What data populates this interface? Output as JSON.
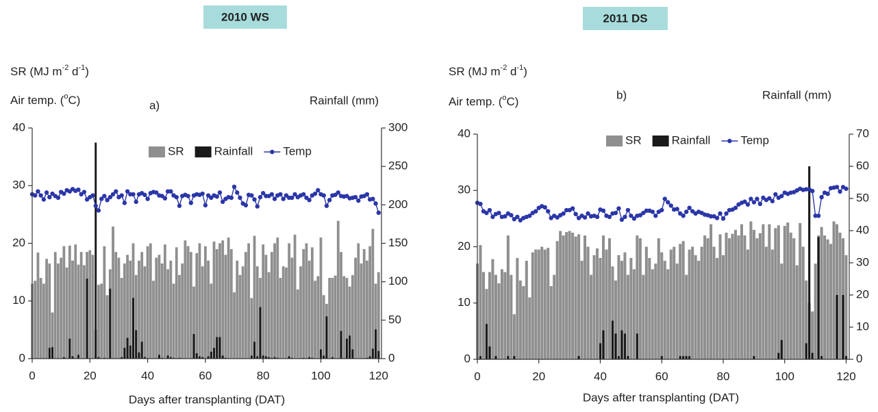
{
  "chart_data": [
    {
      "type": "combo",
      "title": "2010 WS",
      "panel_label": "a)",
      "ylabel": [
        "SR (MJ m",
        "-2",
        " d",
        "-1",
        ")"
      ],
      "ylabel2": [
        "Air temp. (",
        "o",
        "C)"
      ],
      "y2label": "Rainfall (mm)",
      "xlabel": "Days after transplanting (DAT)",
      "xlim": [
        0,
        121
      ],
      "xticks": [
        0,
        20,
        40,
        60,
        80,
        100,
        120
      ],
      "ylim": [
        0,
        40
      ],
      "yticks": [
        0,
        10,
        20,
        30,
        40
      ],
      "y2lim": [
        0,
        300
      ],
      "y2ticks": [
        0,
        50,
        100,
        150,
        200,
        250,
        300
      ],
      "x": [
        0,
        1,
        2,
        3,
        4,
        5,
        6,
        7,
        8,
        9,
        10,
        11,
        12,
        13,
        14,
        15,
        16,
        17,
        18,
        19,
        20,
        21,
        22,
        23,
        24,
        25,
        26,
        27,
        28,
        29,
        30,
        31,
        32,
        33,
        34,
        35,
        36,
        37,
        38,
        39,
        40,
        41,
        42,
        43,
        44,
        45,
        46,
        47,
        48,
        49,
        50,
        51,
        52,
        53,
        54,
        55,
        56,
        57,
        58,
        59,
        60,
        61,
        62,
        63,
        64,
        65,
        66,
        67,
        68,
        69,
        70,
        71,
        72,
        73,
        74,
        75,
        76,
        77,
        78,
        79,
        80,
        81,
        82,
        83,
        84,
        85,
        86,
        87,
        88,
        89,
        90,
        91,
        92,
        93,
        94,
        95,
        96,
        97,
        98,
        99,
        100,
        101,
        102,
        103,
        104,
        105,
        106,
        107,
        108,
        109,
        110,
        111,
        112,
        113,
        114,
        115,
        116,
        117,
        118,
        119,
        120
      ],
      "series": [
        {
          "name": "SR",
          "kind": "bar",
          "color": "#8f8f8f",
          "values": [
            13,
            13.5,
            18.4,
            14,
            13,
            17.3,
            16.5,
            8,
            18.5,
            16.5,
            17.5,
            19.5,
            15.8,
            19.6,
            17,
            19.8,
            16.3,
            18.5,
            16.2,
            18.5,
            18.8,
            18,
            5,
            12.8,
            13,
            19.5,
            11,
            15.5,
            22.9,
            18.5,
            17.5,
            14,
            16.5,
            18,
            17,
            20,
            14.5,
            17,
            18.5,
            16,
            19.5,
            20,
            13.5,
            17.5,
            18,
            16.5,
            19.8,
            15.5,
            17,
            13,
            19.3,
            14.5,
            16.5,
            20.5,
            19.5,
            18.5,
            12.5,
            18.3,
            20,
            16,
            19.5,
            17,
            13,
            20.3,
            19,
            20,
            20.5,
            18,
            21,
            19,
            11.5,
            17,
            14.5,
            16,
            18.5,
            20,
            10.5,
            21.3,
            16,
            14,
            19.8,
            18,
            15,
            18.5,
            20,
            21,
            14,
            16,
            15.8,
            20,
            17.5,
            21.5,
            12,
            16,
            19,
            20,
            17,
            19.3,
            13.5,
            14.3,
            21,
            11,
            9.5,
            14,
            14,
            14.4,
            23.9,
            18.5,
            14.3,
            14,
            12.5,
            14.5,
            17.5,
            20,
            16.5,
            19,
            17,
            19.5,
            22.5,
            13,
            15
          ]
        },
        {
          "name": "Rainfall",
          "kind": "bar",
          "axis": "y2",
          "color": "#1a1a1a",
          "values": [
            0,
            0,
            0,
            0,
            0,
            0,
            14,
            15,
            0,
            0,
            0,
            2,
            0,
            26,
            3,
            0,
            5,
            0,
            0,
            104,
            0,
            0,
            281,
            2,
            0,
            1,
            0,
            91,
            0,
            0,
            0,
            2,
            14,
            27,
            17,
            79,
            37,
            8,
            22,
            2,
            0,
            0,
            0,
            0,
            5,
            1,
            0,
            4,
            2,
            1,
            0,
            1,
            0,
            0,
            0,
            0,
            32,
            7,
            3,
            2,
            0,
            3,
            9,
            14,
            28,
            28,
            4,
            1,
            0,
            0,
            0,
            0,
            0,
            0,
            0,
            0,
            4,
            22,
            3,
            67,
            4,
            3,
            2,
            1,
            2,
            1,
            0,
            0,
            0,
            3,
            1,
            0,
            0,
            0,
            1,
            0,
            2,
            1,
            0,
            0,
            12,
            4,
            55,
            0,
            2,
            0,
            0,
            36,
            0,
            26,
            30,
            12,
            0,
            0,
            0,
            0,
            1,
            3,
            13,
            38,
            10
          ]
        },
        {
          "name": "Temp",
          "kind": "line",
          "color": "#2b36a8",
          "values": [
            28.5,
            28.3,
            29,
            28.3,
            27.6,
            28.8,
            28,
            28.6,
            28.2,
            27.9,
            28.9,
            28.6,
            29.2,
            29,
            29.4,
            29.1,
            29.3,
            28.5,
            28.9,
            27.6,
            28,
            28.3,
            26.5,
            25.7,
            27.7,
            28.2,
            27.5,
            28,
            28.5,
            29,
            28,
            28.3,
            27,
            29,
            28.5,
            28.5,
            27.2,
            28.5,
            28.7,
            28.4,
            27.7,
            28.7,
            28.9,
            28.8,
            28.3,
            28.2,
            27.8,
            29,
            29,
            28.3,
            28,
            26.5,
            28.2,
            28.4,
            28.2,
            27,
            28.3,
            28.5,
            28.4,
            28.6,
            26.6,
            28.3,
            27.9,
            28.3,
            28.1,
            28.8,
            27.2,
            27.7,
            28,
            27.9,
            29.8,
            28.8,
            27.9,
            26.9,
            26.6,
            28.4,
            28.3,
            27.6,
            26.4,
            28,
            28.7,
            28.2,
            28.2,
            28.5,
            27.7,
            28.3,
            28.5,
            27.7,
            28.3,
            27.9,
            27.9,
            28.5,
            28,
            28.3,
            28.5,
            27.9,
            27.5,
            28.3,
            28.6,
            29.2,
            28.5,
            28.3,
            26.5,
            27.5,
            28.3,
            28.4,
            28.8,
            28.2,
            28.1,
            28.2,
            27.8,
            27.9,
            28,
            27.4,
            28.1,
            28.2,
            28.5,
            27.6,
            27.7,
            26.9,
            25.3
          ]
        }
      ]
    },
    {
      "type": "combo",
      "title": "2011 DS",
      "panel_label": "b)",
      "ylabel": [
        "SR (MJ m",
        "-2",
        " d",
        "-1",
        ")"
      ],
      "ylabel2": [
        "Air temp. (",
        "o",
        "C)"
      ],
      "y2label": "Rainfall (mm)",
      "xlabel": "Days after transplanting (DAT)",
      "xlim": [
        0,
        121
      ],
      "xticks": [
        0,
        20,
        40,
        60,
        80,
        100,
        120
      ],
      "ylim": [
        0,
        40
      ],
      "yticks": [
        0,
        10,
        20,
        30,
        40
      ],
      "y2lim": [
        0,
        70
      ],
      "y2ticks": [
        0,
        10,
        20,
        30,
        40,
        50,
        60,
        70
      ],
      "x": [
        0,
        1,
        2,
        3,
        4,
        5,
        6,
        7,
        8,
        9,
        10,
        11,
        12,
        13,
        14,
        15,
        16,
        17,
        18,
        19,
        20,
        21,
        22,
        23,
        24,
        25,
        26,
        27,
        28,
        29,
        30,
        31,
        32,
        33,
        34,
        35,
        36,
        37,
        38,
        39,
        40,
        41,
        42,
        43,
        44,
        45,
        46,
        47,
        48,
        49,
        50,
        51,
        52,
        53,
        54,
        55,
        56,
        57,
        58,
        59,
        60,
        61,
        62,
        63,
        64,
        65,
        66,
        67,
        68,
        69,
        70,
        71,
        72,
        73,
        74,
        75,
        76,
        77,
        78,
        79,
        80,
        81,
        82,
        83,
        84,
        85,
        86,
        87,
        88,
        89,
        90,
        91,
        92,
        93,
        94,
        95,
        96,
        97,
        98,
        99,
        100,
        101,
        102,
        103,
        104,
        105,
        106,
        107,
        108,
        109,
        110,
        111,
        112,
        113,
        114,
        115,
        116,
        117,
        118,
        119,
        120
      ],
      "series": [
        {
          "name": "SR",
          "kind": "bar",
          "color": "#8f8f8f",
          "values": [
            17,
            20.3,
            15.5,
            12.5,
            15.5,
            17.8,
            15,
            13.5,
            16,
            15.5,
            22,
            15,
            8,
            18,
            14,
            13,
            17.5,
            11,
            19,
            19.5,
            19.5,
            20,
            19.5,
            19.8,
            13,
            15,
            21,
            22.8,
            22,
            22.6,
            22.8,
            22.5,
            21.8,
            22.2,
            17.5,
            22,
            20,
            15,
            18.5,
            19.7,
            18,
            22,
            19.5,
            21.5,
            16.5,
            14,
            18.5,
            17.5,
            19,
            15,
            18,
            16,
            22,
            21.5,
            15,
            20,
            18,
            16,
            17,
            21.5,
            19,
            17.5,
            16,
            19.5,
            20,
            17,
            20.5,
            21,
            15,
            19.5,
            20,
            18.5,
            17.5,
            20,
            22,
            21.5,
            24,
            20,
            18,
            22.2,
            18.5,
            22.5,
            21.5,
            22.3,
            23,
            22,
            24,
            22,
            19.5,
            24.5,
            23,
            21.5,
            22.4,
            24,
            20,
            24,
            19.5,
            23.3,
            23.8,
            17,
            23.7,
            24.3,
            22.5,
            21.5,
            16.7,
            24.2,
            20,
            14,
            10,
            8.5,
            17,
            22,
            23.5,
            22,
            21.3,
            20.5,
            24.5,
            24,
            22.5,
            21.5,
            18.5
          ]
        },
        {
          "name": "Rainfall",
          "kind": "bar",
          "axis": "y2",
          "color": "#1a1a1a",
          "values": [
            0,
            1,
            0,
            11,
            4,
            0,
            1,
            0,
            0,
            0,
            1,
            0,
            1,
            0,
            0,
            0,
            0,
            0,
            0,
            0,
            0,
            0,
            0,
            0,
            0,
            0,
            0,
            0,
            0,
            0,
            0,
            0,
            0,
            1,
            0,
            0,
            0,
            0,
            0,
            0,
            5,
            9,
            0,
            0,
            12,
            8,
            1,
            9,
            8,
            1,
            0,
            0,
            8,
            0,
            0,
            0,
            0,
            0,
            0,
            0,
            1,
            0,
            0,
            0,
            0,
            0,
            1,
            1,
            1,
            1,
            0,
            0,
            0,
            0,
            0,
            0,
            0,
            0,
            0,
            0,
            0,
            0,
            0,
            0,
            0,
            0,
            0,
            0,
            0,
            0,
            1,
            0,
            0,
            0,
            0,
            0,
            0,
            0,
            2,
            6,
            0,
            0,
            0,
            0,
            0,
            0,
            0,
            5,
            60,
            2,
            0,
            38,
            1,
            0,
            0,
            0,
            0,
            20,
            0,
            20,
            1
          ]
        },
        {
          "name": "Temp",
          "kind": "line",
          "color": "#2b36a8",
          "values": [
            27.8,
            27.6,
            26.3,
            26,
            26.5,
            25.3,
            25.8,
            26,
            25.3,
            25.4,
            25.9,
            25.6,
            24.9,
            25.3,
            24.7,
            25.1,
            25.3,
            25.5,
            26,
            26.3,
            26.9,
            27.2,
            27,
            26.3,
            25.1,
            25.5,
            25.2,
            25.6,
            25.9,
            26.5,
            26.5,
            26.8,
            25.8,
            25.1,
            25.5,
            25.2,
            25.9,
            25.4,
            25.5,
            25.3,
            26.6,
            26.4,
            25.5,
            25.3,
            25.9,
            26,
            26.8,
            24.8,
            25.3,
            26.5,
            25.5,
            25,
            25.5,
            25.6,
            26,
            26.4,
            26.4,
            26.2,
            25.5,
            26.2,
            26.5,
            28.5,
            27.9,
            27.3,
            26.6,
            26.7,
            25.9,
            25.5,
            26.2,
            26.9,
            26.3,
            25.9,
            26.2,
            26,
            25.7,
            25.6,
            25.4,
            25.4,
            25.1,
            25.9,
            25,
            25.9,
            26.5,
            26.6,
            26.9,
            27.5,
            27.8,
            28,
            27.5,
            28.5,
            27.9,
            28.5,
            27.6,
            28.7,
            28.3,
            28.6,
            28.1,
            29.3,
            28.7,
            29,
            29.6,
            29.4,
            29.6,
            29.7,
            30,
            30.3,
            30.1,
            30.2,
            30.2,
            29.9,
            25.5,
            25.5,
            28.8,
            29.6,
            29.4,
            30.4,
            30.5,
            30.6,
            29.8,
            30.6,
            30.3
          ]
        }
      ]
    }
  ]
}
